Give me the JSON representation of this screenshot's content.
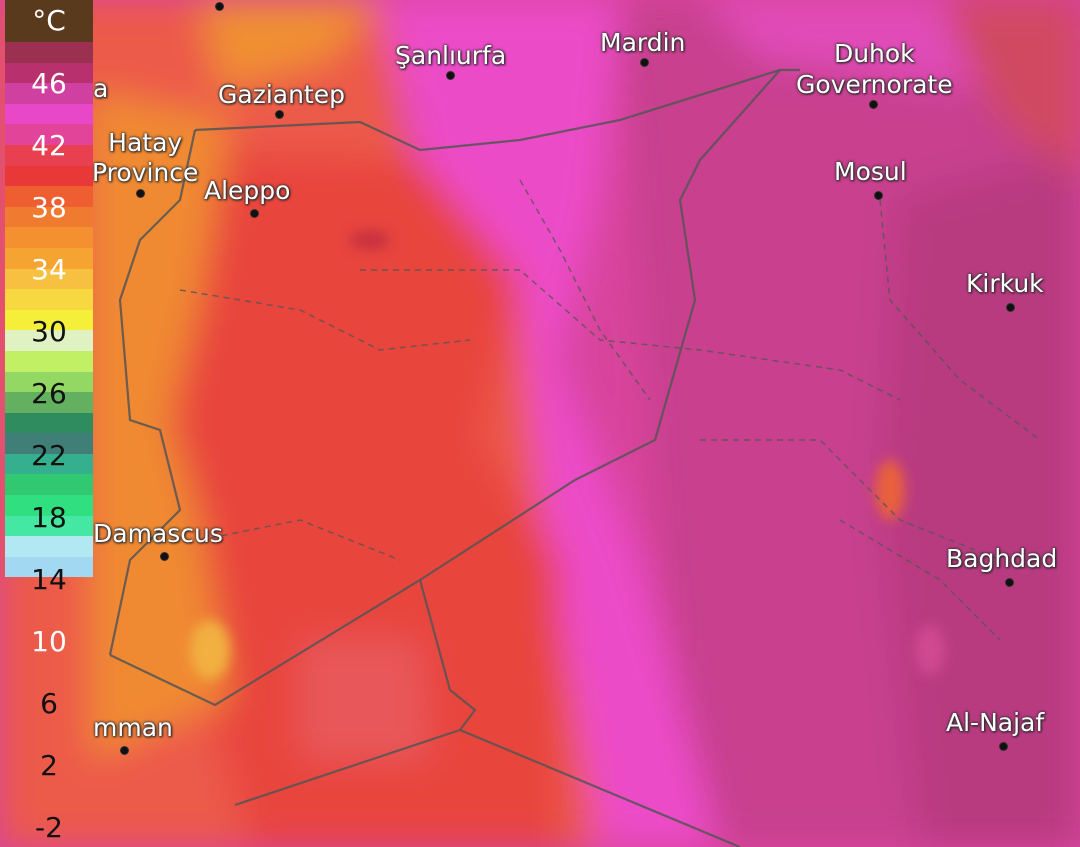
{
  "legend": {
    "unit": "°C",
    "labels": [
      "46",
      "42",
      "38",
      "34",
      "30",
      "26",
      "22",
      "18",
      "14",
      "10",
      "6",
      "2",
      "-2"
    ],
    "band_colors": [
      "#9c3050",
      "#b8306e",
      "#d040a0",
      "#e848c8",
      "#e2449a",
      "#e84050",
      "#e83838",
      "#ef5e30",
      "#f07a30",
      "#f59030",
      "#f5a432",
      "#f8c040",
      "#f8d840",
      "#f6ef3a",
      "#e0f2c2",
      "#c2f064",
      "#92d862",
      "#62b060",
      "#2e8c5e",
      "#407f78",
      "#34b08e",
      "#30c870",
      "#30e080",
      "#44e8a2",
      "#b2e8f2",
      "#a2d8f2"
    ],
    "label_colors_light": [
      "46",
      "42",
      "38",
      "34",
      "10"
    ]
  },
  "cities": [
    {
      "name": "Şanlıurfa"
    },
    {
      "name": "Mardin"
    },
    {
      "name": "Duhok\nGovernorate"
    },
    {
      "name": "Gaziantep"
    },
    {
      "name": "Hatay\nProvince"
    },
    {
      "name": "Aleppo"
    },
    {
      "name": "Mosul"
    },
    {
      "name": "Kirkuk"
    },
    {
      "name": "Damascus"
    },
    {
      "name": "Baghdad"
    },
    {
      "name": "mman"
    },
    {
      "name": "Al-Najaf"
    },
    {
      "name": "a"
    }
  ]
}
